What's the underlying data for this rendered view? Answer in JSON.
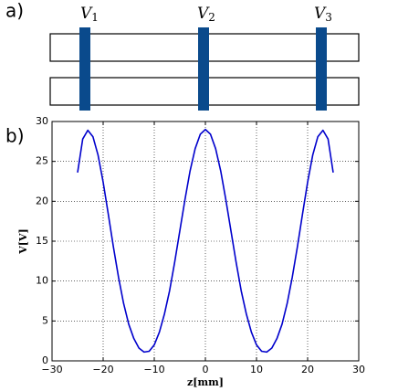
{
  "panels": {
    "a": "a)",
    "b": "b)"
  },
  "electrodes": [
    {
      "label": "V",
      "subscript": "1"
    },
    {
      "label": "V",
      "subscript": "2"
    },
    {
      "label": "V",
      "subscript": "3"
    }
  ],
  "chart_data": {
    "type": "line",
    "xlabel": "z[mm]",
    "ylabel": "V[V]",
    "x": [
      -25,
      -24,
      -23,
      -22,
      -21,
      -20,
      -19,
      -18,
      -17,
      -16,
      -15,
      -14,
      -13,
      -12,
      -11,
      -10,
      -9,
      -8,
      -7,
      -6,
      -5,
      -4,
      -3,
      -2,
      -1,
      0,
      1,
      2,
      3,
      4,
      5,
      6,
      7,
      8,
      9,
      10,
      11,
      12,
      13,
      14,
      15,
      16,
      17,
      18,
      19,
      20,
      21,
      22,
      23,
      24,
      25
    ],
    "series": [
      {
        "color": "#0000cc",
        "values": [
          23.6,
          27.8,
          28.9,
          28.1,
          25.8,
          22.4,
          18.4,
          14.3,
          10.5,
          7.2,
          4.6,
          2.8,
          1.6,
          1.1,
          1.2,
          2.0,
          3.6,
          5.9,
          8.8,
          12.4,
          16.3,
          20.2,
          23.8,
          26.6,
          28.4,
          29.0,
          28.4,
          26.6,
          23.8,
          20.2,
          16.3,
          12.4,
          8.8,
          5.9,
          3.6,
          2.0,
          1.2,
          1.1,
          1.6,
          2.8,
          4.6,
          7.2,
          10.5,
          14.3,
          18.4,
          22.4,
          25.8,
          28.1,
          28.9,
          27.8,
          23.6
        ]
      }
    ],
    "xlim": [
      -30,
      30
    ],
    "xticks": [
      {
        "value": -30,
        "label": "−30"
      },
      {
        "value": -20,
        "label": "−20"
      },
      {
        "value": -10,
        "label": "−10"
      },
      0,
      10,
      20,
      30
    ],
    "ylim": [
      0,
      30
    ],
    "yticks": [
      0,
      5,
      10,
      15,
      20,
      25,
      30
    ],
    "grid": true
  }
}
